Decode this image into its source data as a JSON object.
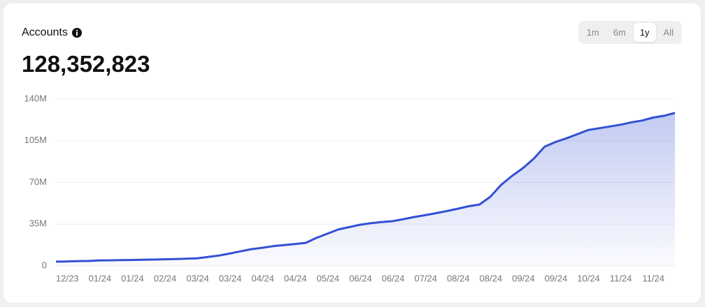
{
  "header": {
    "title": "Accounts",
    "total": "128,352,823"
  },
  "range_buttons": [
    "1m",
    "6m",
    "1y",
    "All"
  ],
  "selected_range": "1y",
  "chart_data": {
    "type": "area",
    "categories": [
      "12/23",
      null,
      null,
      "01/24",
      null,
      null,
      "01/24",
      null,
      null,
      "02/24",
      null,
      null,
      "03/24",
      null,
      null,
      "03/24",
      null,
      null,
      "04/24",
      null,
      null,
      "04/24",
      null,
      null,
      "05/24",
      null,
      null,
      "06/24",
      null,
      null,
      "06/24",
      null,
      null,
      "07/24",
      null,
      null,
      "08/24",
      null,
      null,
      "08/24",
      null,
      null,
      "09/24",
      null,
      null,
      "09/24",
      null,
      null,
      "10/24",
      null,
      null,
      "11/24",
      null,
      null,
      "11/24",
      null,
      null,
      null
    ],
    "values": [
      3.5,
      3.7,
      3.9,
      4.1,
      4.5,
      4.6,
      4.8,
      4.9,
      5.1,
      5.3,
      5.5,
      5.7,
      6,
      6.3,
      7.5,
      8.6,
      10.3,
      12.2,
      14,
      15.2,
      16.5,
      17.4,
      18.3,
      19.3,
      23.5,
      27,
      30.5,
      32.5,
      34.5,
      35.8,
      36.7,
      37.5,
      39.2,
      41,
      42.5,
      44.2,
      46,
      48,
      50,
      51.5,
      58,
      68,
      75.5,
      82,
      90,
      100,
      104,
      107,
      110.5,
      114,
      115.5,
      117,
      118.5,
      120.5,
      122,
      124.5,
      126,
      128.4
    ],
    "color": "#3350d4",
    "ylim": [
      0,
      140
    ],
    "yticks": [
      0,
      {
        "value": 35,
        "label": "35M"
      },
      {
        "value": 70,
        "label": "70M"
      },
      {
        "value": 105,
        "label": "105M"
      },
      {
        "value": 140,
        "label": "140M"
      }
    ],
    "grid": true
  }
}
